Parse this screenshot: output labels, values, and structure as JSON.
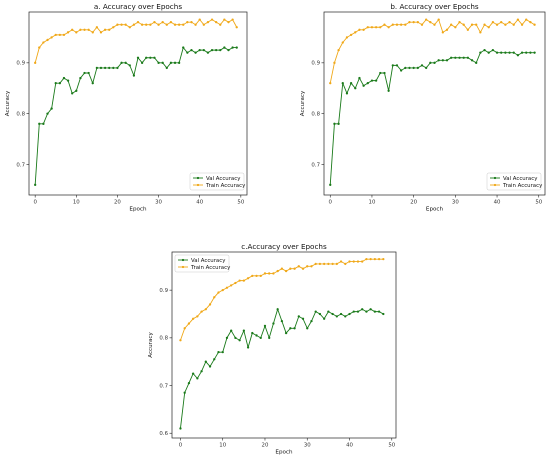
{
  "chart_data": [
    {
      "type": "line",
      "title": "a. Accuracy over Epochs",
      "xlabel": "Epoch",
      "ylabel": "Accuracy",
      "xlim": [
        -1.5,
        51.5
      ],
      "ylim": [
        0.64,
        1.0
      ],
      "xticks": [
        "0",
        "10",
        "20",
        "30",
        "40",
        "50"
      ],
      "yticks": [
        "0.7",
        "0.8",
        "0.9"
      ],
      "legend": "bottom-right",
      "grid": false,
      "series": [
        {
          "name": "Val Accuracy",
          "color": "#1a7a1a",
          "values": [
            0.66,
            0.78,
            0.78,
            0.8,
            0.81,
            0.86,
            0.86,
            0.87,
            0.865,
            0.84,
            0.845,
            0.87,
            0.88,
            0.88,
            0.86,
            0.89,
            0.89,
            0.89,
            0.89,
            0.89,
            0.89,
            0.9,
            0.9,
            0.895,
            0.875,
            0.91,
            0.9,
            0.91,
            0.91,
            0.91,
            0.9,
            0.9,
            0.89,
            0.9,
            0.9,
            0.9,
            0.93,
            0.92,
            0.925,
            0.92,
            0.925,
            0.925,
            0.92,
            0.925,
            0.925,
            0.925,
            0.93,
            0.925,
            0.93,
            0.93
          ]
        },
        {
          "name": "Train Accuracy",
          "color": "#f0a818",
          "values": [
            0.9,
            0.93,
            0.94,
            0.945,
            0.95,
            0.955,
            0.955,
            0.955,
            0.96,
            0.965,
            0.96,
            0.965,
            0.965,
            0.965,
            0.96,
            0.97,
            0.96,
            0.965,
            0.965,
            0.97,
            0.975,
            0.975,
            0.975,
            0.97,
            0.975,
            0.98,
            0.975,
            0.975,
            0.975,
            0.98,
            0.975,
            0.98,
            0.975,
            0.98,
            0.975,
            0.975,
            0.975,
            0.98,
            0.98,
            0.975,
            0.985,
            0.975,
            0.98,
            0.985,
            0.98,
            0.975,
            0.985,
            0.98,
            0.985,
            0.97
          ]
        }
      ]
    },
    {
      "type": "line",
      "title": "b. Accuracy over Epochs",
      "xlabel": "Epoch",
      "ylabel": "Accuracy",
      "xlim": [
        -1.5,
        51.5
      ],
      "ylim": [
        0.64,
        1.0
      ],
      "xticks": [
        "0",
        "10",
        "20",
        "30",
        "40",
        "50"
      ],
      "yticks": [
        "0.7",
        "0.8",
        "0.9"
      ],
      "legend": "bottom-right",
      "grid": false,
      "series": [
        {
          "name": "Val Accuracy",
          "color": "#1a7a1a",
          "values": [
            0.66,
            0.78,
            0.78,
            0.86,
            0.84,
            0.86,
            0.85,
            0.87,
            0.855,
            0.86,
            0.865,
            0.865,
            0.88,
            0.88,
            0.845,
            0.895,
            0.895,
            0.885,
            0.89,
            0.89,
            0.89,
            0.89,
            0.895,
            0.89,
            0.9,
            0.9,
            0.905,
            0.905,
            0.905,
            0.91,
            0.91,
            0.91,
            0.91,
            0.91,
            0.905,
            0.9,
            0.92,
            0.925,
            0.92,
            0.925,
            0.92,
            0.92,
            0.92,
            0.92,
            0.92,
            0.915,
            0.92,
            0.92,
            0.92,
            0.92
          ]
        },
        {
          "name": "Train Accuracy",
          "color": "#f0a818",
          "values": [
            0.86,
            0.9,
            0.925,
            0.94,
            0.95,
            0.955,
            0.96,
            0.965,
            0.965,
            0.97,
            0.97,
            0.97,
            0.97,
            0.975,
            0.97,
            0.975,
            0.975,
            0.975,
            0.975,
            0.98,
            0.98,
            0.98,
            0.975,
            0.985,
            0.98,
            0.975,
            0.985,
            0.96,
            0.965,
            0.975,
            0.97,
            0.98,
            0.975,
            0.965,
            0.975,
            0.975,
            0.96,
            0.975,
            0.97,
            0.98,
            0.975,
            0.98,
            0.975,
            0.98,
            0.975,
            0.985,
            0.975,
            0.985,
            0.98,
            0.975
          ]
        }
      ]
    },
    {
      "type": "line",
      "title": "c.Accuracy over Epochs",
      "xlabel": "Epoch",
      "ylabel": "Accuracy",
      "xlim": [
        -2,
        51
      ],
      "ylim": [
        0.59,
        0.98
      ],
      "xticks": [
        "0",
        "10",
        "20",
        "30",
        "40",
        "50"
      ],
      "yticks": [
        "0.6",
        "0.7",
        "0.8",
        "0.9"
      ],
      "legend": "top-left",
      "grid": false,
      "series": [
        {
          "name": "Val Accuracy",
          "color": "#1a7a1a",
          "values": [
            0.61,
            0.685,
            0.705,
            0.725,
            0.715,
            0.73,
            0.75,
            0.74,
            0.755,
            0.77,
            0.77,
            0.8,
            0.815,
            0.8,
            0.795,
            0.815,
            0.78,
            0.81,
            0.805,
            0.8,
            0.825,
            0.8,
            0.83,
            0.86,
            0.835,
            0.81,
            0.82,
            0.82,
            0.845,
            0.84,
            0.82,
            0.835,
            0.855,
            0.85,
            0.84,
            0.855,
            0.85,
            0.845,
            0.85,
            0.845,
            0.85,
            0.855,
            0.855,
            0.86,
            0.855,
            0.86,
            0.855,
            0.855,
            0.85
          ]
        },
        {
          "name": "Train Accuracy",
          "color": "#f0a818",
          "values": [
            0.795,
            0.82,
            0.83,
            0.84,
            0.845,
            0.855,
            0.86,
            0.87,
            0.885,
            0.895,
            0.9,
            0.905,
            0.91,
            0.915,
            0.92,
            0.92,
            0.925,
            0.93,
            0.93,
            0.93,
            0.935,
            0.935,
            0.935,
            0.94,
            0.945,
            0.94,
            0.945,
            0.945,
            0.95,
            0.945,
            0.95,
            0.95,
            0.955,
            0.955,
            0.955,
            0.955,
            0.955,
            0.955,
            0.96,
            0.955,
            0.96,
            0.96,
            0.96,
            0.96,
            0.965,
            0.965,
            0.965,
            0.965,
            0.965
          ]
        }
      ]
    }
  ]
}
